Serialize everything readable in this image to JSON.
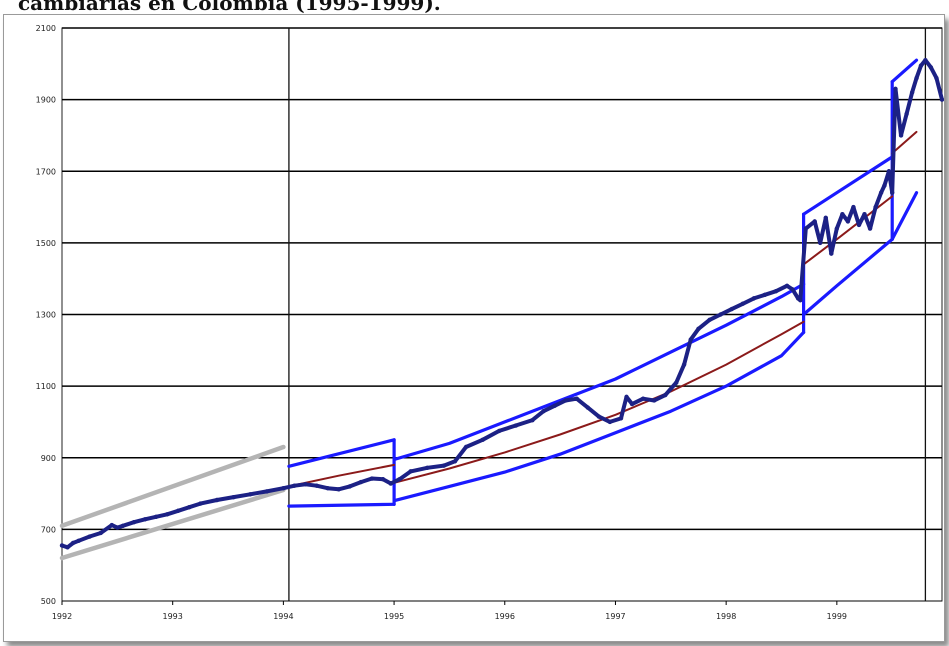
{
  "caption": "cambiarias en Colombia (1995-1999).",
  "chart_data": {
    "type": "line",
    "title": "",
    "xlabel": "",
    "ylabel": "",
    "xlim": [
      1992,
      1999.95
    ],
    "ylim": [
      500,
      2100
    ],
    "x_ticks": [
      "1992",
      "1993",
      "1994",
      "1995",
      "1996",
      "1997",
      "1998",
      "1999"
    ],
    "y_ticks": [
      "500",
      "700",
      "900",
      "1100",
      "1300",
      "1500",
      "1700",
      "1900",
      "2100"
    ],
    "grid": true,
    "colors": {
      "exchange_rate": "#1c2185",
      "central_parity": "#8b1a1a",
      "band": "#1a1aff",
      "band_pre_1994": "#b4b4b4"
    },
    "series": [
      {
        "key": "exchange_rate",
        "x": [
          1992.0,
          1992.05,
          1992.1,
          1992.15,
          1992.25,
          1992.35,
          1992.45,
          1992.5,
          1992.55,
          1992.65,
          1992.75,
          1992.85,
          1992.95,
          1993.05,
          1993.15,
          1993.25,
          1993.4,
          1993.55,
          1993.7,
          1993.85,
          1994.0,
          1994.1,
          1994.2,
          1994.3,
          1994.4,
          1994.5,
          1994.6,
          1994.7,
          1994.8,
          1994.9,
          1994.97,
          1995.05,
          1995.15,
          1995.3,
          1995.45,
          1995.55,
          1995.65,
          1995.8,
          1995.95,
          1996.1,
          1996.25,
          1996.35,
          1996.45,
          1996.55,
          1996.65,
          1996.75,
          1996.85,
          1996.95,
          1997.05,
          1997.1,
          1997.15,
          1997.25,
          1997.35,
          1997.45,
          1997.55,
          1997.62,
          1997.68,
          1997.75,
          1997.85,
          1997.95,
          1998.05,
          1998.15,
          1998.25,
          1998.35,
          1998.45,
          1998.55,
          1998.6,
          1998.65,
          1998.67,
          1998.72,
          1998.8,
          1998.85,
          1998.9,
          1998.95,
          1999.0,
          1999.05,
          1999.1,
          1999.15,
          1999.2,
          1999.25,
          1999.3,
          1999.35,
          1999.4,
          1999.43,
          1999.47,
          1999.5,
          1999.53,
          1999.58,
          1999.63,
          1999.68,
          1999.72,
          1999.76,
          1999.8,
          1999.85,
          1999.9,
          1999.95
        ],
        "values": [
          655,
          650,
          662,
          668,
          680,
          690,
          712,
          705,
          710,
          720,
          728,
          735,
          742,
          752,
          762,
          772,
          782,
          790,
          798,
          806,
          815,
          822,
          826,
          822,
          815,
          812,
          820,
          832,
          842,
          840,
          828,
          840,
          862,
          872,
          878,
          890,
          930,
          950,
          975,
          990,
          1005,
          1030,
          1045,
          1060,
          1065,
          1040,
          1015,
          1000,
          1010,
          1070,
          1050,
          1065,
          1060,
          1075,
          1110,
          1160,
          1230,
          1260,
          1285,
          1300,
          1315,
          1330,
          1345,
          1355,
          1365,
          1380,
          1370,
          1345,
          1340,
          1540,
          1560,
          1500,
          1570,
          1470,
          1540,
          1580,
          1560,
          1600,
          1550,
          1580,
          1540,
          1600,
          1640,
          1660,
          1700,
          1640,
          1930,
          1800,
          1860,
          1920,
          1960,
          1995,
          2010,
          1990,
          1960,
          1900
        ]
      },
      {
        "key": "central_parity",
        "segments": [
          {
            "x": [
              1994.05,
              1994.5,
              1995.0
            ],
            "values": [
              820,
              850,
              880
            ]
          },
          {
            "x": [
              1995.0,
              1995.5,
              1996.0,
              1996.5,
              1997.0,
              1997.5,
              1998.0,
              1998.5,
              1998.7
            ],
            "values": [
              830,
              870,
              915,
              965,
              1020,
              1085,
              1160,
              1245,
              1280
            ]
          },
          {
            "x": [
              1998.7,
              1999.0,
              1999.5
            ],
            "values": [
              1440,
              1510,
              1630
            ]
          },
          {
            "x": [
              1999.5,
              1999.72
            ],
            "values": [
              1750,
              1810
            ]
          }
        ]
      },
      {
        "key": "band",
        "segments": [
          {
            "x": [
              1994.05,
              1995.0
            ],
            "values": [
              876,
              950
            ]
          },
          {
            "x": [
              1995.0,
              1995.0
            ],
            "values": [
              950,
              770
            ]
          },
          {
            "x": [
              1995.0,
              1994.05
            ],
            "values": [
              770,
              765
            ]
          },
          {
            "x": [
              1995.0,
              1995.5,
              1996.0,
              1996.5,
              1997.0,
              1997.5,
              1998.0,
              1998.5,
              1998.7
            ],
            "values": [
              895,
              940,
              1000,
              1060,
              1120,
              1195,
              1270,
              1350,
              1385
            ]
          },
          {
            "x": [
              1995.0,
              1995.5,
              1996.0,
              1996.5,
              1997.0,
              1997.5,
              1998.0,
              1998.5,
              1998.7
            ],
            "values": [
              780,
              820,
              860,
              910,
              970,
              1030,
              1100,
              1185,
              1250
            ]
          },
          {
            "x": [
              1998.7,
              1998.7
            ],
            "values": [
              1250,
              1580
            ]
          },
          {
            "x": [
              1998.7,
              1999.0,
              1999.5
            ],
            "values": [
              1580,
              1640,
              1740
            ]
          },
          {
            "x": [
              1998.7,
              1999.0,
              1999.5
            ],
            "values": [
              1300,
              1380,
              1510
            ]
          },
          {
            "x": [
              1999.5,
              1999.5
            ],
            "values": [
              1510,
              1950
            ]
          },
          {
            "x": [
              1999.5,
              1999.72
            ],
            "values": [
              1950,
              2010
            ]
          },
          {
            "x": [
              1999.5,
              1999.72
            ],
            "values": [
              1510,
              1640
            ]
          }
        ]
      },
      {
        "key": "band_pre_1994",
        "segments": [
          {
            "x": [
              1992.0,
              1994.0
            ],
            "values": [
              710,
              930
            ]
          },
          {
            "x": [
              1992.0,
              1994.0
            ],
            "values": [
              620,
              810
            ]
          }
        ]
      }
    ]
  }
}
